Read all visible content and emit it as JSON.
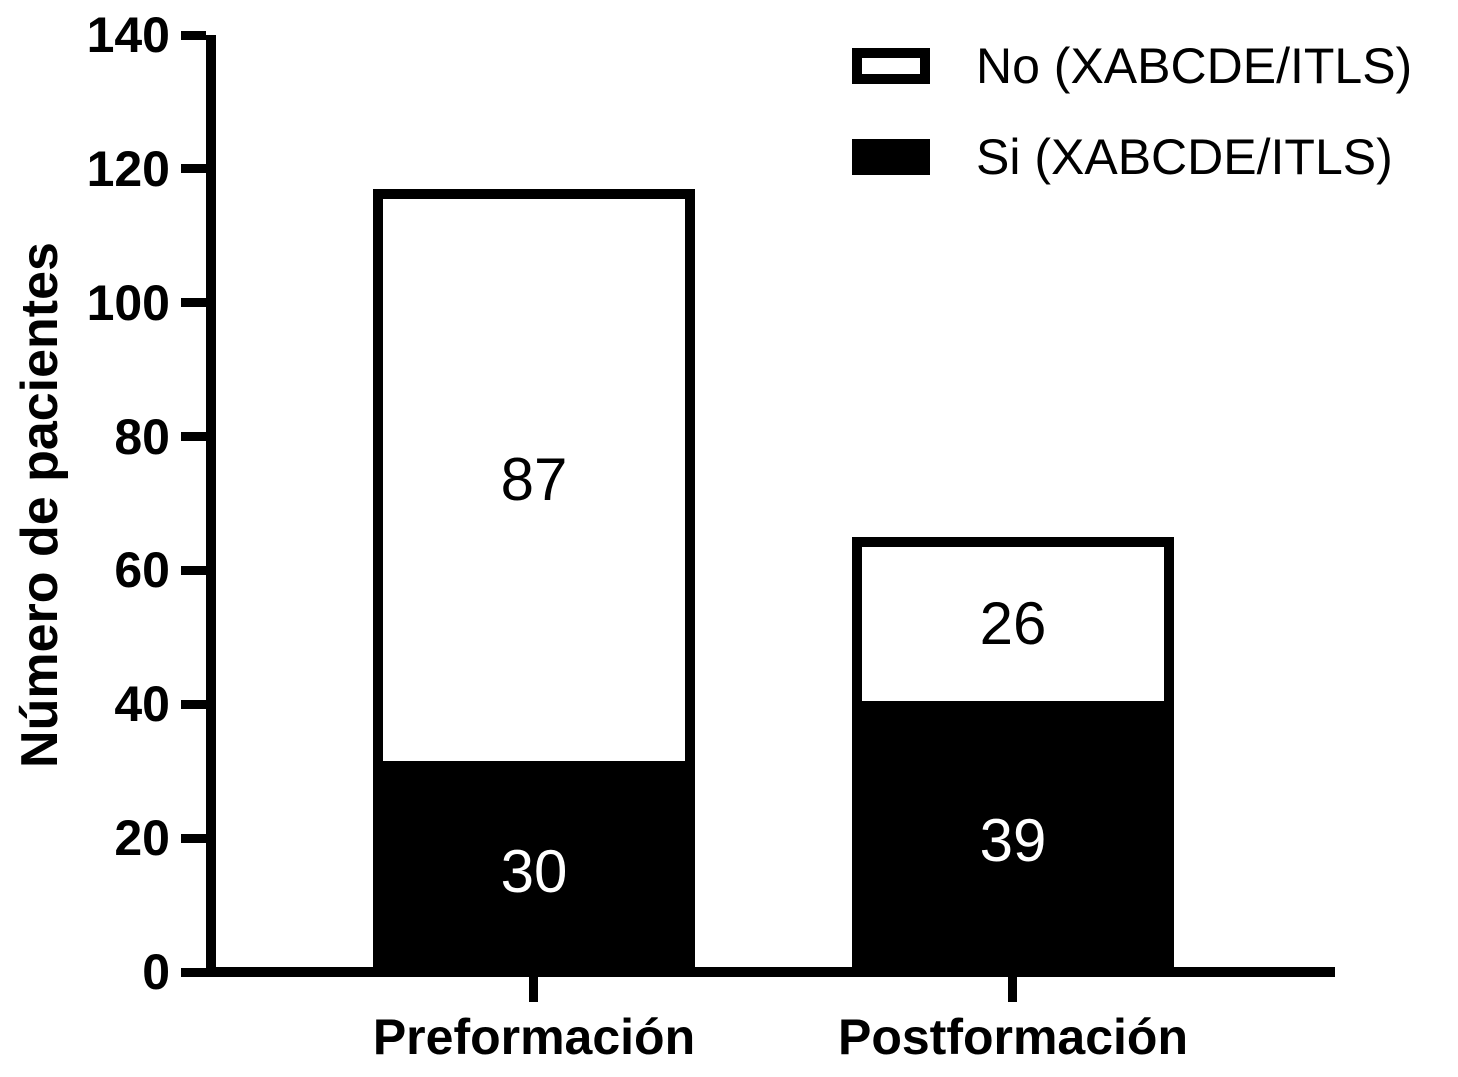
{
  "chart_data": {
    "type": "bar",
    "stacked": true,
    "title": "",
    "categories": [
      "Preformación",
      "Postformación"
    ],
    "series": [
      {
        "name": "Si (XABCDE/ITLS)",
        "fill": "#000000",
        "text_color": "#ffffff",
        "values": [
          30,
          39
        ]
      },
      {
        "name": "No (XABCDE/ITLS)",
        "fill": "#ffffff",
        "text_color": "#000000",
        "values": [
          87,
          26
        ]
      }
    ],
    "ylabel": "Número de pacientes",
    "xlabel": "",
    "ylim": [
      0,
      140
    ],
    "yticks": [
      0,
      20,
      40,
      60,
      80,
      100,
      120,
      140
    ],
    "grid": false,
    "legend": {
      "position": "top-right",
      "items": [
        {
          "label": "No (XABCDE/ITLS)",
          "swatch": "outlined-white"
        },
        {
          "label": "Si (XABCDE/ITLS)",
          "swatch": "solid-black"
        }
      ]
    },
    "axis_color": "#000000",
    "background_color": "#ffffff"
  }
}
